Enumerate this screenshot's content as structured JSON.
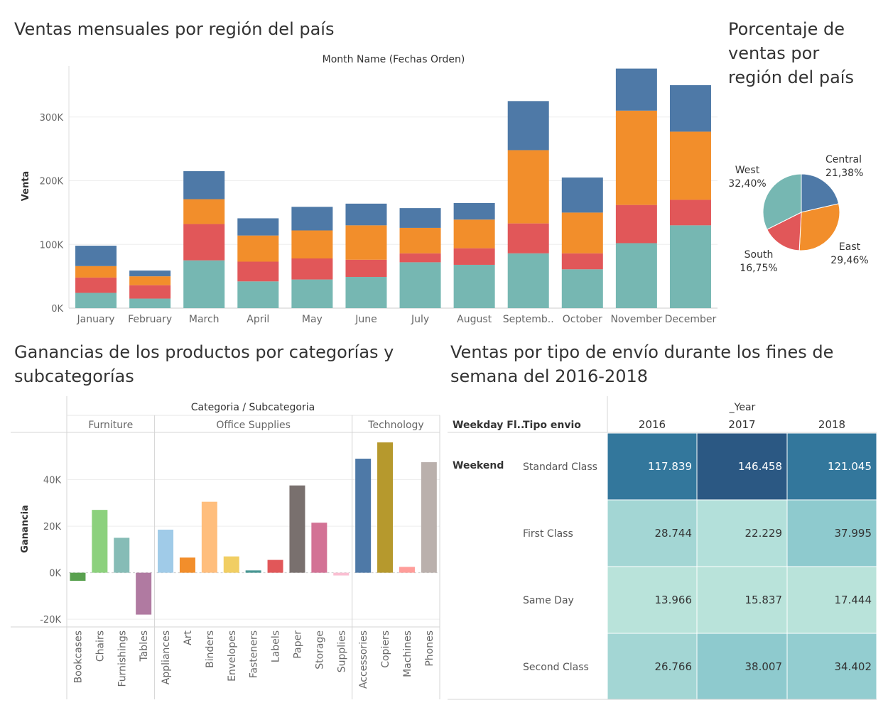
{
  "titles": {
    "monthly": "Ventas mensuales por región del país",
    "pie_line1": "Porcentaje de",
    "pie_line2": "ventas por",
    "pie_line3": "región del país",
    "profit_line1": "Ganancias de los productos por categorías y",
    "profit_line2": "subcategorías",
    "shipping_line1": "Ventas por tipo de envío durante los fines de",
    "shipping_line2": "semana del 2016-2018"
  },
  "colors": {
    "West": "#76b7b2",
    "South": "#e15759",
    "East": "#f28e2b",
    "Central": "#4e79a7"
  },
  "chart_data": [
    {
      "type": "bar",
      "stacked": true,
      "column_header": "Month Name (Fechas Orden)",
      "ylabel": "Venta",
      "ylim": [
        0,
        380000
      ],
      "yticks": [
        0,
        100000,
        200000,
        300000
      ],
      "ytick_labels": [
        "0K",
        "100K",
        "200K",
        "300K"
      ],
      "categories": [
        "January",
        "February",
        "March",
        "April",
        "May",
        "June",
        "July",
        "August",
        "Septemb..",
        "October",
        "November",
        "December"
      ],
      "series": [
        {
          "name": "West",
          "values": [
            24000,
            15000,
            75000,
            42000,
            45000,
            49000,
            72000,
            68000,
            86000,
            61000,
            102000,
            130000
          ]
        },
        {
          "name": "South",
          "values": [
            24000,
            21000,
            57000,
            31000,
            33000,
            27000,
            14000,
            26000,
            47000,
            25000,
            60000,
            40000
          ]
        },
        {
          "name": "East",
          "values": [
            18000,
            14000,
            39000,
            41000,
            44000,
            54000,
            40000,
            45000,
            115000,
            64000,
            148000,
            107000
          ]
        },
        {
          "name": "Central",
          "values": [
            32000,
            9000,
            44000,
            27000,
            37000,
            34000,
            31000,
            26000,
            77000,
            55000,
            66000,
            73000
          ]
        }
      ]
    },
    {
      "type": "pie",
      "slices": [
        {
          "name": "Central",
          "value": 21.38,
          "label": "21,38%"
        },
        {
          "name": "East",
          "value": 29.46,
          "label": "29,46%"
        },
        {
          "name": "South",
          "value": 16.75,
          "label": "16,75%"
        },
        {
          "name": "West",
          "value": 32.4,
          "label": "32,40%"
        }
      ]
    },
    {
      "type": "bar",
      "column_header": "Categoria / Subcategoria",
      "ylabel": "Ganancia",
      "ylim": [
        -23000,
        60000
      ],
      "yticks": [
        -20000,
        0,
        20000,
        40000
      ],
      "ytick_labels": [
        "-20K",
        "0K",
        "20K",
        "40K"
      ],
      "groups": [
        {
          "name": "Furniture",
          "items": [
            {
              "name": "Bookcases",
              "value": -3500,
              "color": "#59a14f"
            },
            {
              "name": "Chairs",
              "value": 27000,
              "color": "#8cd17d"
            },
            {
              "name": "Furnishings",
              "value": 15000,
              "color": "#86bcb6"
            },
            {
              "name": "Tables",
              "value": -18000,
              "color": "#b07aa1"
            }
          ]
        },
        {
          "name": "Office Supplies",
          "items": [
            {
              "name": "Appliances",
              "value": 18500,
              "color": "#a0cbe8"
            },
            {
              "name": "Art",
              "value": 6500,
              "color": "#f28e2b"
            },
            {
              "name": "Binders",
              "value": 30500,
              "color": "#ffbe7d"
            },
            {
              "name": "Envelopes",
              "value": 7000,
              "color": "#f1ce63"
            },
            {
              "name": "Fasteners",
              "value": 1000,
              "color": "#499894"
            },
            {
              "name": "Labels",
              "value": 5500,
              "color": "#e15759"
            },
            {
              "name": "Paper",
              "value": 37500,
              "color": "#79706e"
            },
            {
              "name": "Storage",
              "value": 21500,
              "color": "#d37295"
            },
            {
              "name": "Supplies",
              "value": -1200,
              "color": "#fabfd2"
            }
          ]
        },
        {
          "name": "Technology",
          "items": [
            {
              "name": "Accessories",
              "value": 49000,
              "color": "#4e79a7"
            },
            {
              "name": "Copiers",
              "value": 56000,
              "color": "#b6992d"
            },
            {
              "name": "Machines",
              "value": 2500,
              "color": "#ff9d9a"
            },
            {
              "name": "Phones",
              "value": 47500,
              "color": "#bab0ac"
            }
          ]
        }
      ]
    },
    {
      "type": "table",
      "column_header": "_Year",
      "row_headers": [
        "Weekday Fl..",
        "Tipo envio"
      ],
      "weekday_value": "Weekend",
      "years": [
        "2016",
        "2017",
        "2018"
      ],
      "rows": [
        {
          "label": "Standard Class",
          "values": [
            "117.839",
            "146.458",
            "121.045"
          ],
          "colors": [
            "#33779c",
            "#2b5883",
            "#33779c"
          ],
          "text_colors": [
            "#ffffff",
            "#ffffff",
            "#ffffff"
          ]
        },
        {
          "label": "First Class",
          "values": [
            "28.744",
            "22.229",
            "37.995"
          ],
          "colors": [
            "#a3d6d4",
            "#b3e0da",
            "#8ecace"
          ],
          "text_colors": [
            "#333333",
            "#333333",
            "#333333"
          ]
        },
        {
          "label": "Same Day",
          "values": [
            "13.966",
            "15.837",
            "17.444"
          ],
          "colors": [
            "#b9e3da",
            "#b9e3da",
            "#b9e3da"
          ],
          "text_colors": [
            "#333333",
            "#333333",
            "#333333"
          ]
        },
        {
          "label": "Second Class",
          "values": [
            "26.766",
            "38.007",
            "34.402"
          ],
          "colors": [
            "#a3d6d4",
            "#8ecace",
            "#93cdd0"
          ],
          "text_colors": [
            "#333333",
            "#333333",
            "#333333"
          ]
        }
      ]
    }
  ]
}
